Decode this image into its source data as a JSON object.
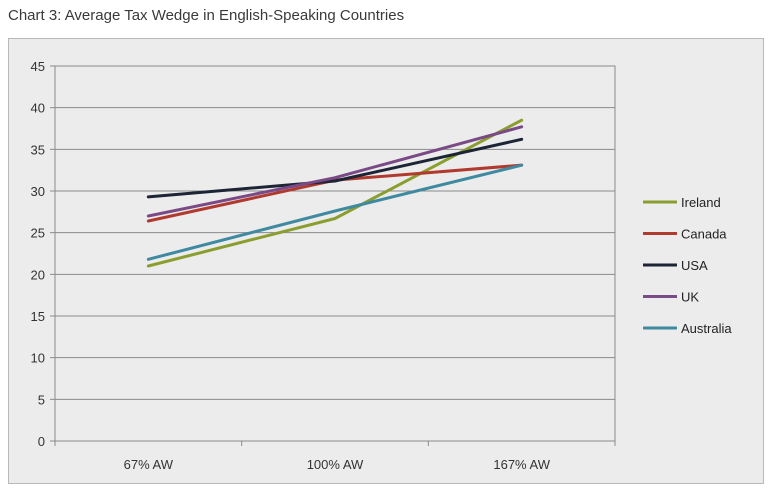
{
  "chart_data": {
    "type": "line",
    "title": "Chart 3: Average Tax Wedge in English-Speaking Countries",
    "categories": [
      "67% AW",
      "100% AW",
      "167% AW"
    ],
    "y_ticks": [
      "0",
      "5",
      "10",
      "15",
      "20",
      "25",
      "30",
      "35",
      "40",
      "45"
    ],
    "ylim": [
      0,
      45
    ],
    "legend_position": "right",
    "series": [
      {
        "name": "Ireland",
        "color": "#8a9e2f",
        "values": [
          21.0,
          26.7,
          38.5
        ]
      },
      {
        "name": "Canada",
        "color": "#b03a2e",
        "values": [
          26.4,
          31.3,
          33.1
        ]
      },
      {
        "name": "USA",
        "color": "#1c2436",
        "values": [
          29.3,
          31.2,
          36.2
        ]
      },
      {
        "name": "UK",
        "color": "#7a4a86",
        "values": [
          27.0,
          31.6,
          37.7
        ]
      },
      {
        "name": "Australia",
        "color": "#3f8aa0",
        "values": [
          21.8,
          27.6,
          33.1
        ]
      }
    ]
  }
}
